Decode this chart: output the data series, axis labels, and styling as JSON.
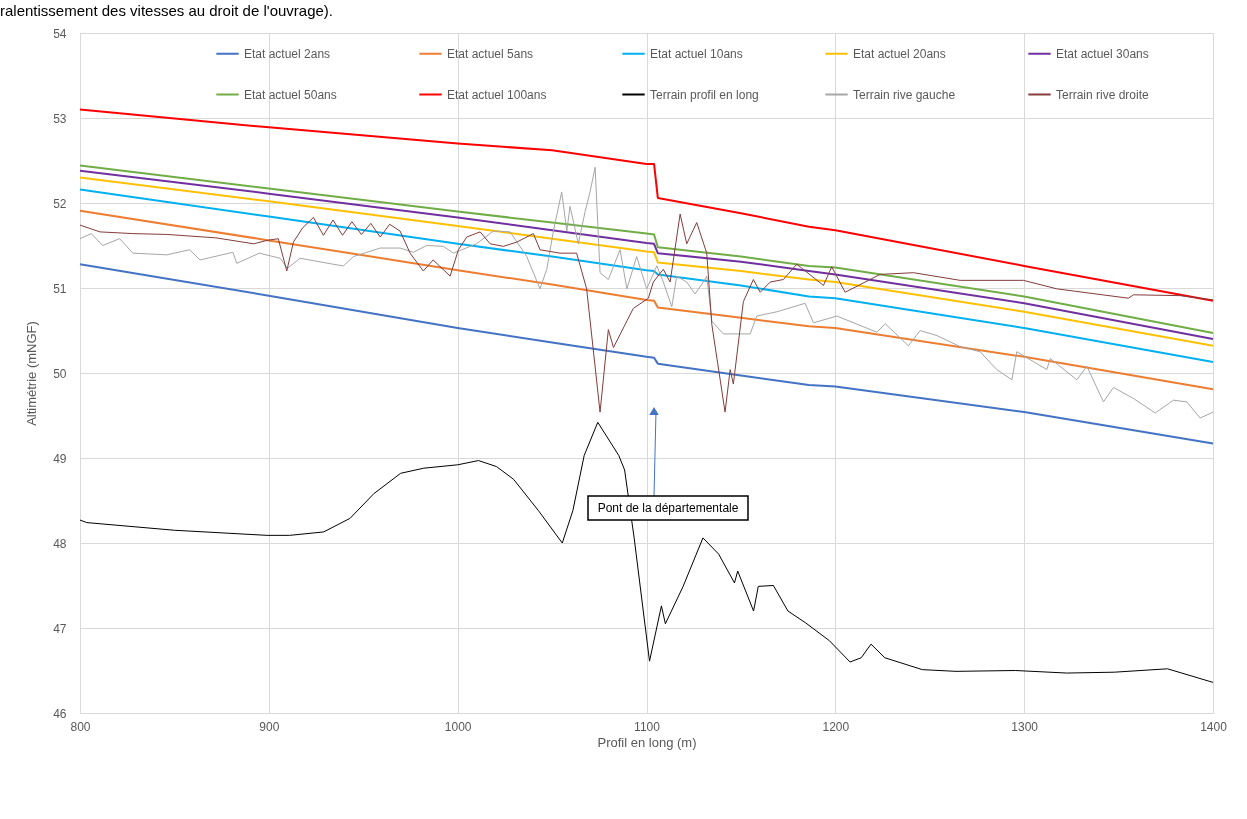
{
  "chart_data": {
    "type": "line",
    "title": "ralentissement des vitesses au droit de l'ouvrage).",
    "xlabel": "Profil en long (m)",
    "ylabel": "Altimétrie (mNGF)",
    "xlim": [
      800,
      1400
    ],
    "xticks": [
      800,
      900,
      1000,
      1100,
      1200,
      1300,
      1400
    ],
    "ylim": [
      46,
      54
    ],
    "yticks": [
      46,
      47,
      48,
      49,
      50,
      51,
      52,
      53,
      54
    ],
    "grid": true,
    "legend": "top",
    "marker": "none",
    "line_style": "solid",
    "annotations": [
      "Pont de la départementale"
    ],
    "series": [
      {
        "name": "Etat actuel 2ans",
        "color": "#4472c4",
        "x": [
          800,
          900,
          1000,
          1050,
          1100,
          1104,
          1106,
          1150,
          1186,
          1200,
          1300,
          1400
        ],
        "values": [
          51.28,
          50.91,
          50.53,
          50.36,
          50.19,
          50.18,
          50.11,
          49.97,
          49.86,
          49.84,
          49.54,
          49.17
        ]
      },
      {
        "name": "Etat actuel 5ans",
        "color": "#ed7d31",
        "x": [
          800,
          900,
          1000,
          1050,
          1100,
          1104,
          1106,
          1150,
          1186,
          1200,
          1300,
          1400
        ],
        "values": [
          51.91,
          51.56,
          51.21,
          51.04,
          50.86,
          50.85,
          50.77,
          50.65,
          50.55,
          50.53,
          50.19,
          49.81
        ]
      },
      {
        "name": "Etat actuel 10ans",
        "color": "#00b0f0",
        "x": [
          800,
          900,
          1000,
          1050,
          1100,
          1104,
          1106,
          1150,
          1186,
          1200,
          1300,
          1400
        ],
        "values": [
          52.16,
          51.84,
          51.52,
          51.37,
          51.21,
          51.2,
          51.16,
          51.03,
          50.9,
          50.88,
          50.53,
          50.13
        ]
      },
      {
        "name": "Etat actuel 20ans",
        "color": "#ffc000",
        "x": [
          800,
          900,
          1000,
          1050,
          1100,
          1104,
          1106,
          1150,
          1186,
          1200,
          1300,
          1400
        ],
        "values": [
          52.3,
          52.02,
          51.73,
          51.58,
          51.43,
          51.42,
          51.3,
          51.2,
          51.1,
          51.07,
          50.72,
          50.32
        ]
      },
      {
        "name": "Etat actuel 30ans",
        "color": "#7030a0",
        "x": [
          800,
          900,
          1000,
          1050,
          1100,
          1104,
          1106,
          1150,
          1186,
          1200,
          1300,
          1400
        ],
        "values": [
          52.38,
          52.11,
          51.83,
          51.68,
          51.53,
          51.52,
          51.41,
          51.31,
          51.2,
          51.16,
          50.82,
          50.4
        ]
      },
      {
        "name": "Etat actuel 50ans",
        "color": "#70ad47",
        "x": [
          800,
          900,
          1000,
          1050,
          1100,
          1104,
          1106,
          1150,
          1186,
          1200,
          1300,
          1400
        ],
        "values": [
          52.44,
          52.17,
          51.9,
          51.77,
          51.64,
          51.63,
          51.48,
          51.37,
          51.26,
          51.24,
          50.9,
          50.47
        ]
      },
      {
        "name": "Etat actuel 100ans",
        "color": "#ff0000",
        "x": [
          800,
          900,
          1000,
          1050,
          1100,
          1104,
          1106,
          1150,
          1186,
          1200,
          1300,
          1400
        ],
        "values": [
          53.1,
          52.89,
          52.7,
          52.62,
          52.46,
          52.46,
          52.06,
          51.88,
          51.72,
          51.68,
          51.26,
          50.85
        ]
      },
      {
        "name": "Terrain profil en long",
        "color": "#000000",
        "x": [
          800,
          803.6,
          850,
          899,
          911,
          929,
          943,
          955.6,
          969.8,
          982,
          1000,
          1011,
          1020.5,
          1029.6,
          1042.8,
          1055.4,
          1061,
          1067,
          1074.2,
          1085.3,
          1088.4,
          1093.4,
          1101.6,
          1107.9,
          1110,
          1119.4,
          1129.9,
          1138.2,
          1146.6,
          1148.3,
          1156.7,
          1159.2,
          1167.2,
          1174.9,
          1184.3,
          1196.9,
          1207.8,
          1213.7,
          1218.9,
          1226.2,
          1246.1,
          1263.9,
          1295.3,
          1322.6,
          1347.7,
          1375.9,
          1400
        ],
        "values": [
          48.27,
          48.24,
          48.15,
          48.09,
          48.09,
          48.13,
          48.29,
          48.58,
          48.82,
          48.88,
          48.92,
          48.97,
          48.9,
          48.75,
          48.38,
          48.0,
          48.38,
          49.03,
          49.42,
          49.03,
          48.86,
          48.07,
          46.61,
          47.26,
          47.05,
          47.49,
          48.06,
          47.87,
          47.53,
          47.67,
          47.2,
          47.49,
          47.5,
          47.2,
          47.06,
          46.85,
          46.6,
          46.65,
          46.81,
          46.65,
          46.51,
          46.49,
          46.5,
          46.47,
          46.48,
          46.52,
          46.36
        ]
      },
      {
        "name": "Terrain rive gauche",
        "color": "#a6a6a6",
        "x": [
          800,
          806,
          812,
          821,
          828,
          846,
          858,
          863.6,
          881,
          883,
          895,
          906,
          909.8,
          916.5,
          934,
          939.5,
          944.8,
          959,
          969.5,
          976.5,
          983.6,
          992.4,
          997.7,
          1010,
          1018.9,
          1027.8,
          1036.6,
          1043.6,
          1047.2,
          1050.7,
          1055.1,
          1057.8,
          1059.5,
          1063.9,
          1067.5,
          1070.1,
          1072.8,
          1075.4,
          1079.8,
          1086,
          1089.6,
          1094.8,
          1100.1,
          1105.5,
          1108.9,
          1113.4,
          1116,
          1121.3,
          1125.7,
          1130.1,
          1131.9,
          1134.6,
          1140.7,
          1154.9,
          1158.4,
          1169,
          1184,
          1188.4,
          1200.8,
          1222,
          1226.4,
          1238.7,
          1244.9,
          1253.8,
          1266.1,
          1276.7,
          1285.5,
          1293.5,
          1296.1,
          1312,
          1313.8,
          1327.9,
          1333.2,
          1342,
          1347.3,
          1357.9,
          1369.4,
          1379.1,
          1386.1,
          1393.2,
          1400
        ],
        "values": [
          51.58,
          51.64,
          51.5,
          51.58,
          51.41,
          51.39,
          51.45,
          51.33,
          51.42,
          51.29,
          51.41,
          51.35,
          51.23,
          51.35,
          51.28,
          51.26,
          51.37,
          51.47,
          51.47,
          51.42,
          51.5,
          51.49,
          51.41,
          51.52,
          51.67,
          51.66,
          51.37,
          50.99,
          51.22,
          51.67,
          52.13,
          51.67,
          51.96,
          51.52,
          51.9,
          52.13,
          52.42,
          51.18,
          51.1,
          51.45,
          50.99,
          51.37,
          50.99,
          51.26,
          51.07,
          50.78,
          51.14,
          51.07,
          50.93,
          51.07,
          51.14,
          50.61,
          50.46,
          50.46,
          50.67,
          50.72,
          50.82,
          50.59,
          50.67,
          50.48,
          50.58,
          50.32,
          50.5,
          50.44,
          50.31,
          50.25,
          50.04,
          49.92,
          50.25,
          50.04,
          50.17,
          49.92,
          50.08,
          49.66,
          49.83,
          49.7,
          49.53,
          49.68,
          49.66,
          49.47,
          49.54
        ]
      },
      {
        "name": "Terrain rive droite",
        "color": "#843c3c",
        "x": [
          800,
          810.6,
          828,
          846,
          872,
          892,
          899,
          905,
          909.5,
          913,
          918,
          923.6,
          928.9,
          934,
          939,
          944,
          949,
          954,
          959,
          964,
          969.5,
          974.8,
          981.8,
          987,
          996,
          1000.4,
          1004.8,
          1011.9,
          1017.2,
          1024.2,
          1031.3,
          1040.1,
          1043.6,
          1054.2,
          1063,
          1068.3,
          1075.4,
          1079.8,
          1082.5,
          1093,
          1101,
          1103.6,
          1108.9,
          1112.5,
          1117.8,
          1121.3,
          1126.6,
          1131.9,
          1134.6,
          1141.6,
          1144.3,
          1146,
          1151.3,
          1156.6,
          1160.2,
          1165.5,
          1172.5,
          1179.6,
          1193.7,
          1198.1,
          1205.2,
          1223.7,
          1241.4,
          1266.1,
          1299.6,
          1317.3,
          1355.2,
          1357.9,
          1382.6,
          1400
        ],
        "values": [
          51.74,
          51.66,
          51.64,
          51.63,
          51.59,
          51.52,
          51.56,
          51.58,
          51.2,
          51.54,
          51.71,
          51.83,
          51.62,
          51.8,
          51.62,
          51.78,
          51.63,
          51.76,
          51.6,
          51.75,
          51.67,
          51.41,
          51.2,
          51.33,
          51.14,
          51.45,
          51.6,
          51.66,
          51.52,
          51.49,
          51.54,
          51.64,
          51.45,
          51.41,
          51.41,
          50.99,
          49.54,
          50.51,
          50.3,
          50.76,
          50.88,
          51.07,
          51.22,
          51.07,
          51.87,
          51.52,
          51.77,
          51.41,
          50.57,
          49.54,
          50.04,
          49.87,
          50.84,
          51.1,
          50.95,
          51.07,
          51.1,
          51.28,
          51.03,
          51.25,
          50.95,
          51.16,
          51.18,
          51.09,
          51.09,
          50.99,
          50.88,
          50.92,
          50.91,
          50.86
        ]
      }
    ]
  }
}
